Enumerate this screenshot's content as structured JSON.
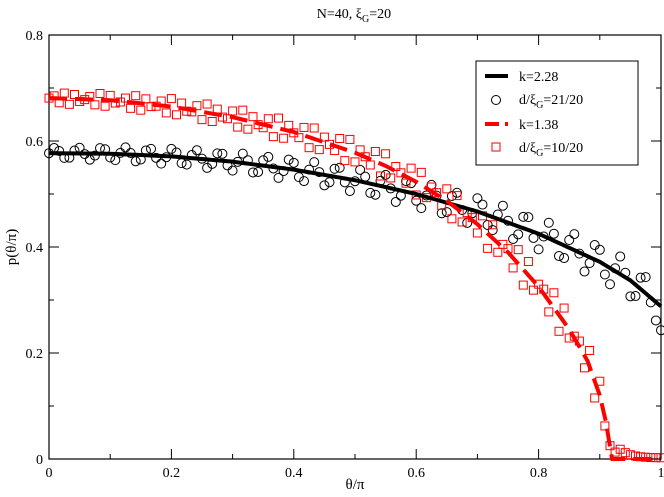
{
  "chart_data": {
    "type": "line",
    "title": "N=40, ξG=20",
    "title_main": "N=40, ξ",
    "title_sub": "G",
    "title_tail": "=20",
    "xlabel": "θ/π",
    "ylabel": "p(θ/π)",
    "xlim": [
      0,
      1
    ],
    "ylim": [
      0,
      0.8
    ],
    "xticks": [
      0,
      0.2,
      0.4,
      0.6,
      0.8,
      1
    ],
    "xtick_labels": [
      "0",
      "0.2",
      "0.4",
      "0.6",
      "0.8",
      "1"
    ],
    "yticks": [
      0,
      0.2,
      0.4,
      0.6,
      0.8
    ],
    "ytick_labels": [
      "0",
      "0.2",
      "0.4",
      "0.6",
      "0.8"
    ],
    "legend_position": "top-right",
    "legend": [
      {
        "id": "k228",
        "text": "k=2.28",
        "pre": "k=2.28",
        "sub": "",
        "post": "",
        "style": "line",
        "color": "#000000"
      },
      {
        "id": "d21",
        "text": "d/ξG=21/20",
        "pre": "d/ξ",
        "sub": "G",
        "post": "=21/20",
        "style": "circle",
        "color": "#000000"
      },
      {
        "id": "k138",
        "text": "k=1.38",
        "pre": "k=1.38",
        "sub": "",
        "post": "",
        "style": "dashed",
        "color": "#ff0000"
      },
      {
        "id": "d10",
        "text": "d/ξG=10/20",
        "pre": "d/ξ",
        "sub": "G",
        "post": "=10/20",
        "style": "square",
        "color": "#ff0000"
      }
    ],
    "series": [
      {
        "name": "k=2.28",
        "kind": "fit",
        "color": "#000000",
        "style": "solid",
        "x": [
          0,
          0.1,
          0.2,
          0.3,
          0.4,
          0.5,
          0.6,
          0.7,
          0.8,
          0.9,
          0.95,
          1.0
        ],
        "y": [
          0.577,
          0.576,
          0.571,
          0.561,
          0.546,
          0.526,
          0.5,
          0.467,
          0.425,
          0.372,
          0.337,
          0.288
        ]
      },
      {
        "name": "d/ξG=21/20",
        "kind": "markers",
        "marker": "circle",
        "color": "#000000",
        "n_points": 120,
        "base_series": "k=2.28",
        "oscillation_period": 0.0385,
        "oscillation_amplitude": [
          0.02,
          0.07
        ],
        "endpoint": {
          "x": 1.0,
          "y": 0.243
        }
      },
      {
        "name": "k=1.38",
        "kind": "fit",
        "color": "#ff0000",
        "style": "dashed",
        "x": [
          0,
          0.1,
          0.2,
          0.3,
          0.4,
          0.5,
          0.55,
          0.6,
          0.65,
          0.7,
          0.75,
          0.8,
          0.85,
          0.88,
          0.9,
          0.91,
          0.92,
          1.0
        ],
        "y": [
          0.681,
          0.677,
          0.665,
          0.645,
          0.617,
          0.578,
          0.553,
          0.523,
          0.487,
          0.443,
          0.39,
          0.325,
          0.245,
          0.185,
          0.12,
          0.07,
          0.0,
          0.0
        ]
      },
      {
        "name": "d/ξG=10/20",
        "kind": "markers",
        "marker": "square",
        "color": "#ff0000",
        "n_points": 120,
        "base_series": "k=1.38",
        "oscillation_period": 0.0195,
        "oscillation_amplitude": [
          0.02,
          0.07
        ],
        "cutoff_x": 0.93
      }
    ]
  }
}
